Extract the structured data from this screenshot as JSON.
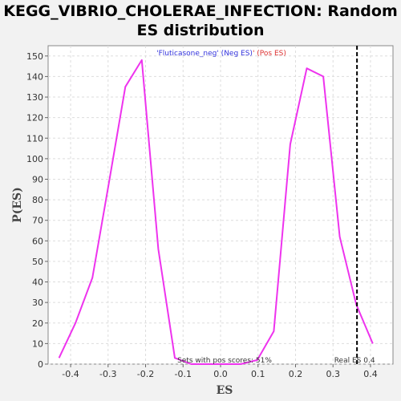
{
  "chart_data": {
    "type": "line",
    "title_line1": "KEGG_VIBRIO_CHOLERAE_INFECTION: Random",
    "title_line2": "ES distribution",
    "xlabel": "ES",
    "ylabel": "P(ES)",
    "xlim": [
      -0.46,
      0.46
    ],
    "ylim": [
      0,
      155
    ],
    "xticks": [
      -0.4,
      -0.3,
      -0.2,
      -0.1,
      0.0,
      0.1,
      0.2,
      0.3,
      0.4
    ],
    "xtick_labels": [
      "-0.4",
      "-0.3",
      "-0.2",
      "-0.1",
      "0.0",
      "0.1",
      "0.2",
      "0.3",
      "0.4"
    ],
    "yticks": [
      0,
      10,
      20,
      30,
      40,
      50,
      60,
      70,
      80,
      90,
      100,
      110,
      120,
      130,
      140,
      150
    ],
    "grid": true,
    "series": [
      {
        "color": "#ee33ee",
        "x": [
          -0.431,
          -0.387,
          -0.342,
          -0.298,
          -0.254,
          -0.21,
          -0.166,
          -0.122,
          -0.078,
          -0.034,
          0.01,
          0.054,
          0.098,
          0.142,
          0.186,
          0.23,
          0.274,
          0.318,
          0.362,
          0.406
        ],
        "y": [
          3,
          20,
          42,
          88,
          135,
          148,
          56,
          3,
          0,
          0,
          0,
          0,
          2,
          16,
          107,
          144,
          140,
          62,
          29,
          10
        ]
      }
    ],
    "real_es": 0.364,
    "legend_neg_name": "'Fluticasone_neg' (Neg ES)",
    "legend_pos_name": "' (Pos ES)",
    "pos_scores_text": "Sets with pos scores: 51%",
    "real_es_text": "Real ES 0.4"
  }
}
